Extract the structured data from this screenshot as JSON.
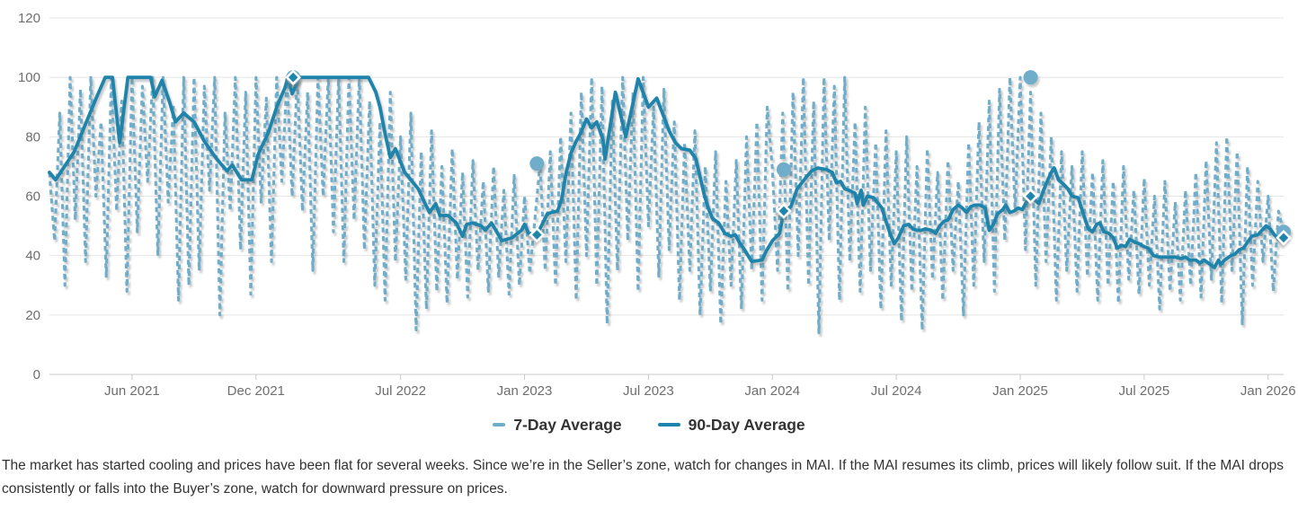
{
  "legend": {
    "items": [
      {
        "label": "7-Day Average"
      },
      {
        "label": "90-Day Average"
      }
    ]
  },
  "caption": {
    "text": "The market has started cooling and prices have been flat for several weeks. Since we’re in the Seller’s zone, watch for changes in MAI. If the MAI resumes its climb, prices will likely follow suit. If the MAI drops consistently or falls into the Buyer’s zone, watch for downward pressure on prices."
  },
  "colors": {
    "seven_day": "#6fadca",
    "ninety_day": "#1e84ab",
    "grid": "#e4e4e4",
    "axis_line": "#c8c8c8",
    "tick_text": "#6e6e6e",
    "marker_stroke": "#ffffff"
  },
  "chart_data": {
    "type": "line",
    "title": "",
    "xlabel": "",
    "ylabel": "",
    "x_unit": "months offset from Feb 2021",
    "y_axis": {
      "min": 0,
      "max": 120,
      "ticks": [
        0,
        20,
        40,
        60,
        80,
        100,
        120
      ]
    },
    "x_axis": {
      "ticks": [
        {
          "m": 4,
          "label": "Jun 2021"
        },
        {
          "m": 10,
          "label": "Dec 2021"
        },
        {
          "m": 17,
          "label": "Jul 2022"
        },
        {
          "m": 23,
          "label": "Jan 2023"
        },
        {
          "m": 29,
          "label": "Jul 2023"
        },
        {
          "m": 35,
          "label": "Jan 2024"
        },
        {
          "m": 41,
          "label": "Jul 2024"
        },
        {
          "m": 47,
          "label": "Jan 2025"
        },
        {
          "m": 53,
          "label": "Jul 2025"
        },
        {
          "m": 59,
          "label": "Jan 2026"
        }
      ]
    },
    "grid": true,
    "legend_position": "bottom-center",
    "series": [
      {
        "name": "7-Day Average",
        "style": "dashed",
        "start_month": 0,
        "step_months": 0.25,
        "values": [
          68,
          45,
          88,
          30,
          100,
          52,
          96,
          38,
          100,
          60,
          85,
          33,
          100,
          55,
          92,
          28,
          100,
          48,
          97,
          65,
          100,
          40,
          100,
          58,
          90,
          25,
          100,
          30,
          100,
          35,
          97,
          62,
          100,
          20,
          88,
          55,
          100,
          42,
          95,
          27,
          100,
          58,
          93,
          38,
          100,
          65,
          100,
          60,
          100,
          55,
          95,
          35,
          100,
          60,
          100,
          48,
          100,
          38,
          100,
          52,
          100,
          42,
          92,
          30,
          85,
          25,
          95,
          38,
          80,
          32,
          88,
          15,
          75,
          22,
          82,
          28,
          70,
          24,
          76,
          32,
          68,
          26,
          72,
          35,
          65,
          28,
          70,
          33,
          62,
          27,
          67,
          30,
          60,
          34,
          52,
          71,
          35,
          75,
          30,
          80,
          38,
          88,
          25,
          95,
          40,
          100,
          30,
          97,
          17,
          92,
          35,
          100,
          45,
          95,
          28,
          100,
          50,
          90,
          33,
          96,
          42,
          85,
          25,
          78,
          35,
          82,
          20,
          70,
          28,
          75,
          17,
          65,
          30,
          72,
          22,
          80,
          35,
          85,
          25,
          90,
          69,
          35,
          88,
          28,
          95,
          40,
          100,
          30,
          92,
          14,
          100,
          45,
          97,
          25,
          100,
          38,
          85,
          28,
          90,
          35,
          78,
          22,
          82,
          30,
          75,
          18,
          80,
          28,
          70,
          15,
          76,
          32,
          68,
          25,
          72,
          35,
          65,
          20,
          78,
          30,
          85,
          38,
          92,
          28,
          96,
          45,
          100,
          55,
          100,
          42,
          95,
          30,
          88,
          38,
          80,
          25,
          75,
          35,
          70,
          28,
          75,
          33,
          68,
          25,
          72,
          30,
          65,
          24,
          70,
          32,
          62,
          27,
          66,
          30,
          60,
          22,
          65,
          28,
          58,
          25,
          62,
          30,
          68,
          26,
          72,
          32,
          78,
          24,
          80,
          35,
          75,
          17,
          70,
          30,
          65,
          38,
          60,
          28,
          55,
          48
        ]
      },
      {
        "name": "90-Day Average",
        "style": "solid",
        "points": [
          [
            0,
            68
          ],
          [
            0.3,
            65.5
          ],
          [
            1.2,
            75
          ],
          [
            2.2,
            92
          ],
          [
            2.7,
            100
          ],
          [
            3.05,
            100
          ],
          [
            3.4,
            78
          ],
          [
            3.8,
            100
          ],
          [
            4.9,
            100
          ],
          [
            5.1,
            93.5
          ],
          [
            5.45,
            99
          ],
          [
            5.8,
            92
          ],
          [
            6.1,
            85
          ],
          [
            6.5,
            88
          ],
          [
            7,
            85
          ],
          [
            7.5,
            78.5
          ],
          [
            8.1,
            72.5
          ],
          [
            8.6,
            68.5
          ],
          [
            8.85,
            70.5
          ],
          [
            9.3,
            65.5
          ],
          [
            9.8,
            65.5
          ],
          [
            10.1,
            74
          ],
          [
            10.6,
            81.5
          ],
          [
            11,
            90
          ],
          [
            11.4,
            96.5
          ],
          [
            11.55,
            100
          ],
          [
            11.75,
            94.5
          ],
          [
            12.1,
            100
          ],
          [
            15.45,
            100
          ],
          [
            15.8,
            95
          ],
          [
            16,
            90
          ],
          [
            16.25,
            81
          ],
          [
            16.5,
            73
          ],
          [
            16.75,
            76
          ],
          [
            17.2,
            68
          ],
          [
            17.85,
            62.5
          ],
          [
            18.15,
            58
          ],
          [
            18.4,
            54.5
          ],
          [
            18.7,
            57.5
          ],
          [
            18.9,
            53.5
          ],
          [
            19.3,
            53.5
          ],
          [
            19.7,
            51
          ],
          [
            20,
            46.5
          ],
          [
            20.2,
            50.5
          ],
          [
            20.5,
            51
          ],
          [
            20.9,
            50
          ],
          [
            21.1,
            48.5
          ],
          [
            21.4,
            51
          ],
          [
            21.7,
            47.5
          ],
          [
            21.9,
            45
          ],
          [
            22.4,
            46
          ],
          [
            22.85,
            48.5
          ],
          [
            23,
            50.5
          ],
          [
            23.2,
            47.5
          ],
          [
            23.6,
            47
          ],
          [
            23.85,
            50.5
          ],
          [
            24.1,
            54
          ],
          [
            24.3,
            54.5
          ],
          [
            24.6,
            55
          ],
          [
            24.8,
            59
          ],
          [
            25,
            67.5
          ],
          [
            25.25,
            74.5
          ],
          [
            25.5,
            78.5
          ],
          [
            25.7,
            81
          ],
          [
            26,
            86
          ],
          [
            26.25,
            83
          ],
          [
            26.5,
            85
          ],
          [
            26.8,
            79
          ],
          [
            26.9,
            72.5
          ],
          [
            27.4,
            95
          ],
          [
            27.9,
            80
          ],
          [
            28.5,
            99.5
          ],
          [
            29,
            90
          ],
          [
            29.4,
            93
          ],
          [
            29.7,
            87.5
          ],
          [
            30,
            82
          ],
          [
            30.3,
            78
          ],
          [
            30.6,
            76
          ],
          [
            31,
            75.5
          ],
          [
            31.3,
            72.5
          ],
          [
            31.7,
            60.5
          ],
          [
            31.9,
            56
          ],
          [
            32.1,
            52.5
          ],
          [
            32.4,
            51
          ],
          [
            32.7,
            47.5
          ],
          [
            33,
            46.5
          ],
          [
            33.2,
            47
          ],
          [
            33.4,
            44.5
          ],
          [
            33.65,
            42
          ],
          [
            34,
            38
          ],
          [
            34.5,
            38.5
          ],
          [
            34.7,
            41.5
          ],
          [
            35,
            45
          ],
          [
            35.35,
            47.5
          ],
          [
            35.55,
            55
          ],
          [
            35.9,
            56.5
          ],
          [
            36.2,
            62.5
          ],
          [
            36.65,
            66.5
          ],
          [
            36.9,
            68.5
          ],
          [
            37.2,
            69.5
          ],
          [
            37.6,
            69
          ],
          [
            37.9,
            68
          ],
          [
            38.1,
            64.5
          ],
          [
            38.3,
            65
          ],
          [
            38.5,
            62.5
          ],
          [
            38.7,
            62
          ],
          [
            39,
            61
          ],
          [
            39.1,
            57.5
          ],
          [
            39.3,
            62
          ],
          [
            39.4,
            57
          ],
          [
            39.6,
            60
          ],
          [
            39.9,
            59.5
          ],
          [
            40.3,
            56
          ],
          [
            40.5,
            51.5
          ],
          [
            40.7,
            47.5
          ],
          [
            40.9,
            44
          ],
          [
            41.1,
            46
          ],
          [
            41.35,
            50
          ],
          [
            41.6,
            50.5
          ],
          [
            41.8,
            49
          ],
          [
            42,
            48.5
          ],
          [
            42.2,
            48.5
          ],
          [
            42.4,
            49
          ],
          [
            42.7,
            48.5
          ],
          [
            42.9,
            47.5
          ],
          [
            43.1,
            50
          ],
          [
            43.3,
            51.5
          ],
          [
            43.5,
            52
          ],
          [
            43.75,
            55.5
          ],
          [
            44,
            57
          ],
          [
            44.2,
            56
          ],
          [
            44.4,
            54.5
          ],
          [
            44.6,
            56.5
          ],
          [
            44.8,
            57
          ],
          [
            45.05,
            57
          ],
          [
            45.3,
            56
          ],
          [
            45.5,
            48.5
          ],
          [
            45.7,
            50.5
          ],
          [
            45.9,
            54
          ],
          [
            46.15,
            55.5
          ],
          [
            46.3,
            57
          ],
          [
            46.5,
            54.5
          ],
          [
            46.7,
            55
          ],
          [
            46.9,
            56
          ],
          [
            47.1,
            55.5
          ],
          [
            47.3,
            58
          ],
          [
            47.5,
            60
          ],
          [
            47.9,
            57.5
          ],
          [
            48.1,
            61.5
          ],
          [
            48.3,
            65
          ],
          [
            48.5,
            68
          ],
          [
            48.65,
            69.5
          ],
          [
            48.85,
            65.5
          ],
          [
            49.1,
            64
          ],
          [
            49.3,
            62.5
          ],
          [
            49.5,
            60
          ],
          [
            49.8,
            59.5
          ],
          [
            50.1,
            53
          ],
          [
            50.3,
            49
          ],
          [
            50.5,
            48
          ],
          [
            50.7,
            50.5
          ],
          [
            50.85,
            51
          ],
          [
            51.05,
            48
          ],
          [
            51.3,
            47.5
          ],
          [
            51.5,
            46
          ],
          [
            51.7,
            42.5
          ],
          [
            51.9,
            43.5
          ],
          [
            52.1,
            43
          ],
          [
            52.3,
            45.5
          ],
          [
            52.55,
            44.5
          ],
          [
            52.75,
            44
          ],
          [
            53,
            43
          ],
          [
            53.2,
            42.5
          ],
          [
            53.45,
            40
          ],
          [
            53.75,
            39.5
          ],
          [
            54,
            39.5
          ],
          [
            54.2,
            39.5
          ],
          [
            54.5,
            39.5
          ],
          [
            54.8,
            39
          ],
          [
            55,
            39.5
          ],
          [
            55.2,
            38.5
          ],
          [
            55.5,
            38.5
          ],
          [
            55.7,
            37.5
          ],
          [
            55.9,
            38.5
          ],
          [
            56.2,
            37
          ],
          [
            56.4,
            36
          ],
          [
            56.6,
            38.5
          ],
          [
            56.7,
            37
          ],
          [
            56.9,
            38.5
          ],
          [
            57.2,
            40
          ],
          [
            57.4,
            40.5
          ],
          [
            57.6,
            42
          ],
          [
            57.8,
            42.5
          ],
          [
            58,
            44.5
          ],
          [
            58.2,
            46.5
          ],
          [
            58.5,
            47
          ],
          [
            58.7,
            48.5
          ],
          [
            58.9,
            50
          ],
          [
            59.1,
            49
          ],
          [
            59.3,
            47
          ],
          [
            59.5,
            45.5
          ],
          [
            59.75,
            46
          ]
        ]
      }
    ],
    "markers": [
      {
        "month": 11.8,
        "seven_day": 100,
        "ninety_day": 100
      },
      {
        "month": 23.6,
        "seven_day": 71,
        "ninety_day": 47
      },
      {
        "month": 35.55,
        "seven_day": 69,
        "ninety_day": 55
      },
      {
        "month": 47.5,
        "seven_day": 100,
        "ninety_day": 60
      },
      {
        "month": 59.75,
        "seven_day": 48,
        "ninety_day": 46
      }
    ]
  }
}
